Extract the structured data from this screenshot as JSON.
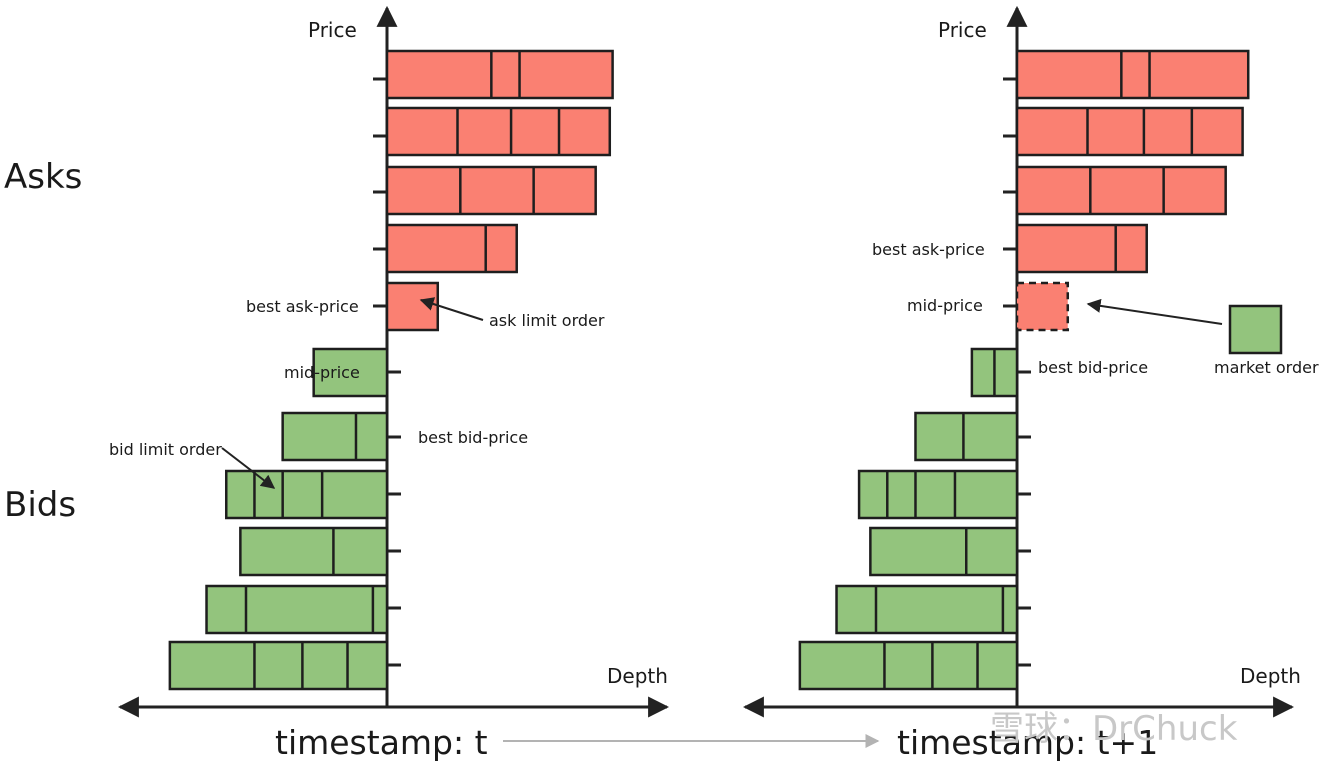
{
  "side_labels": {
    "asks": "Asks",
    "bids": "Bids"
  },
  "panel_t": {
    "price_label": "Price",
    "depth_label": "Depth",
    "timestamp": "timestamp: t",
    "best_ask_label": "best ask-price",
    "mid_label": "mid-price",
    "best_bid_label": "best bid-price",
    "ask_limit_label": "ask limit order",
    "bid_limit_label": "bid limit order",
    "asks": [
      [
        3.7,
        1.0,
        3.3
      ],
      [
        2.5,
        1.9,
        1.7,
        1.8
      ],
      [
        2.6,
        2.6,
        2.2
      ],
      [
        3.5,
        1.1
      ],
      [
        1.8
      ]
    ],
    "bids": [
      [
        2.6
      ],
      [
        1.1,
        2.6
      ],
      [
        2.3,
        1.4,
        1.0,
        1.0
      ],
      [
        1.9,
        3.3
      ],
      [
        0.5,
        4.5,
        1.4
      ],
      [
        1.4,
        1.6,
        1.7,
        3.0
      ]
    ]
  },
  "panel_t1": {
    "price_label": "Price",
    "depth_label": "Depth",
    "timestamp": "timestamp: t+1",
    "best_ask_label": "best ask-price",
    "mid_label": "mid-price",
    "best_bid_label": "best bid-price",
    "market_order_label": "market order",
    "asks": [
      [
        3.7,
        1.0,
        3.5
      ],
      [
        2.5,
        2.0,
        1.7,
        1.8
      ],
      [
        2.6,
        2.6,
        2.2
      ],
      [
        3.5,
        1.1
      ]
    ],
    "consumed_ask": [
      1.8
    ],
    "bids": [
      [
        0.8,
        0.8
      ],
      [
        1.9,
        1.7
      ],
      [
        2.2,
        1.4,
        1.0,
        1.0
      ],
      [
        1.8,
        3.4
      ],
      [
        0.5,
        4.5,
        1.4
      ],
      [
        1.4,
        1.6,
        1.7,
        3.0
      ]
    ]
  },
  "watermark": "雪球：DrChuck",
  "colors": {
    "ask": "#fa8072",
    "bid": "#93c47d",
    "axis": "#222222",
    "time_arrow": "#b3b3b3"
  }
}
